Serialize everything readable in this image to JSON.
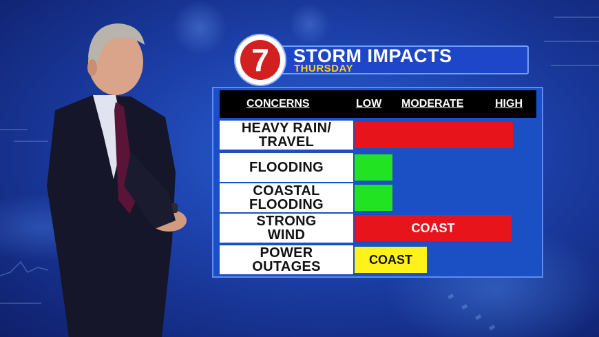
{
  "header": {
    "title": "STORM IMPACTS",
    "subtitle": "THURSDAY",
    "logo_text": "7"
  },
  "columns": [
    "CONCERNS",
    "LOW",
    "MODERATE",
    "HIGH"
  ],
  "rows": [
    {
      "label_lines": [
        "HEAVY RAIN/",
        "TRAVEL"
      ],
      "level": 0.92,
      "color": "#e8141c",
      "bar_text": ""
    },
    {
      "label_lines": [
        "FLOODING"
      ],
      "level": 0.22,
      "color": "#22e322",
      "bar_text": ""
    },
    {
      "label_lines": [
        "COASTAL",
        "FLOODING"
      ],
      "level": 0.22,
      "color": "#22e322",
      "bar_text": ""
    },
    {
      "label_lines": [
        "STRONG",
        "WIND"
      ],
      "level": 0.91,
      "color": "#e8141c",
      "bar_text": "COAST"
    },
    {
      "label_lines": [
        "POWER",
        "OUTAGES"
      ],
      "level": 0.42,
      "color": "#fff21a",
      "bar_text": "COAST"
    }
  ]
}
